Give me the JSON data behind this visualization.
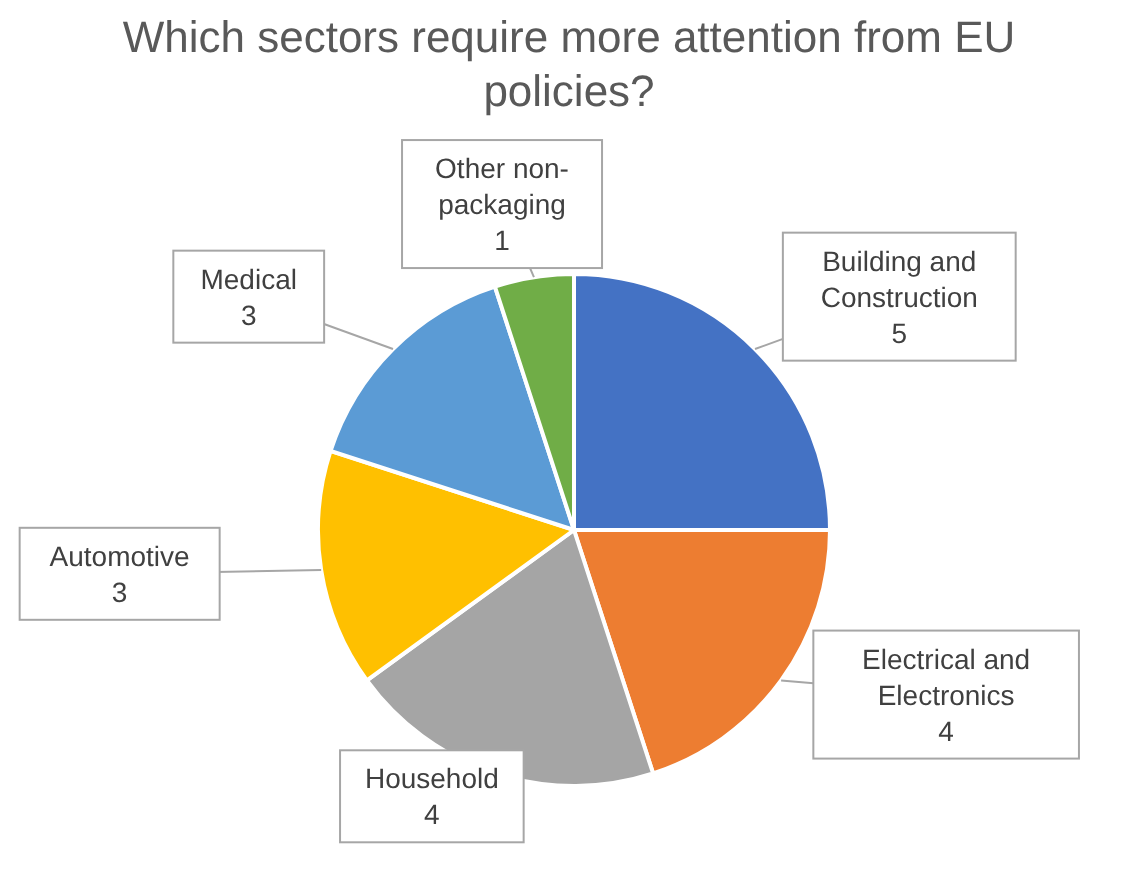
{
  "chart_data": {
    "type": "pie",
    "title": "Which sectors require more attention from EU policies?",
    "categories": [
      "Building and Construction",
      "Electrical and Electronics",
      "Household",
      "Automotive",
      "Medical",
      "Other non-packaging"
    ],
    "values": [
      5,
      4,
      4,
      3,
      3,
      1
    ],
    "colors": [
      "#4472c4",
      "#ed7d31",
      "#a5a5a5",
      "#ffc000",
      "#5b9bd5",
      "#70ad47"
    ],
    "data_labels": true
  }
}
